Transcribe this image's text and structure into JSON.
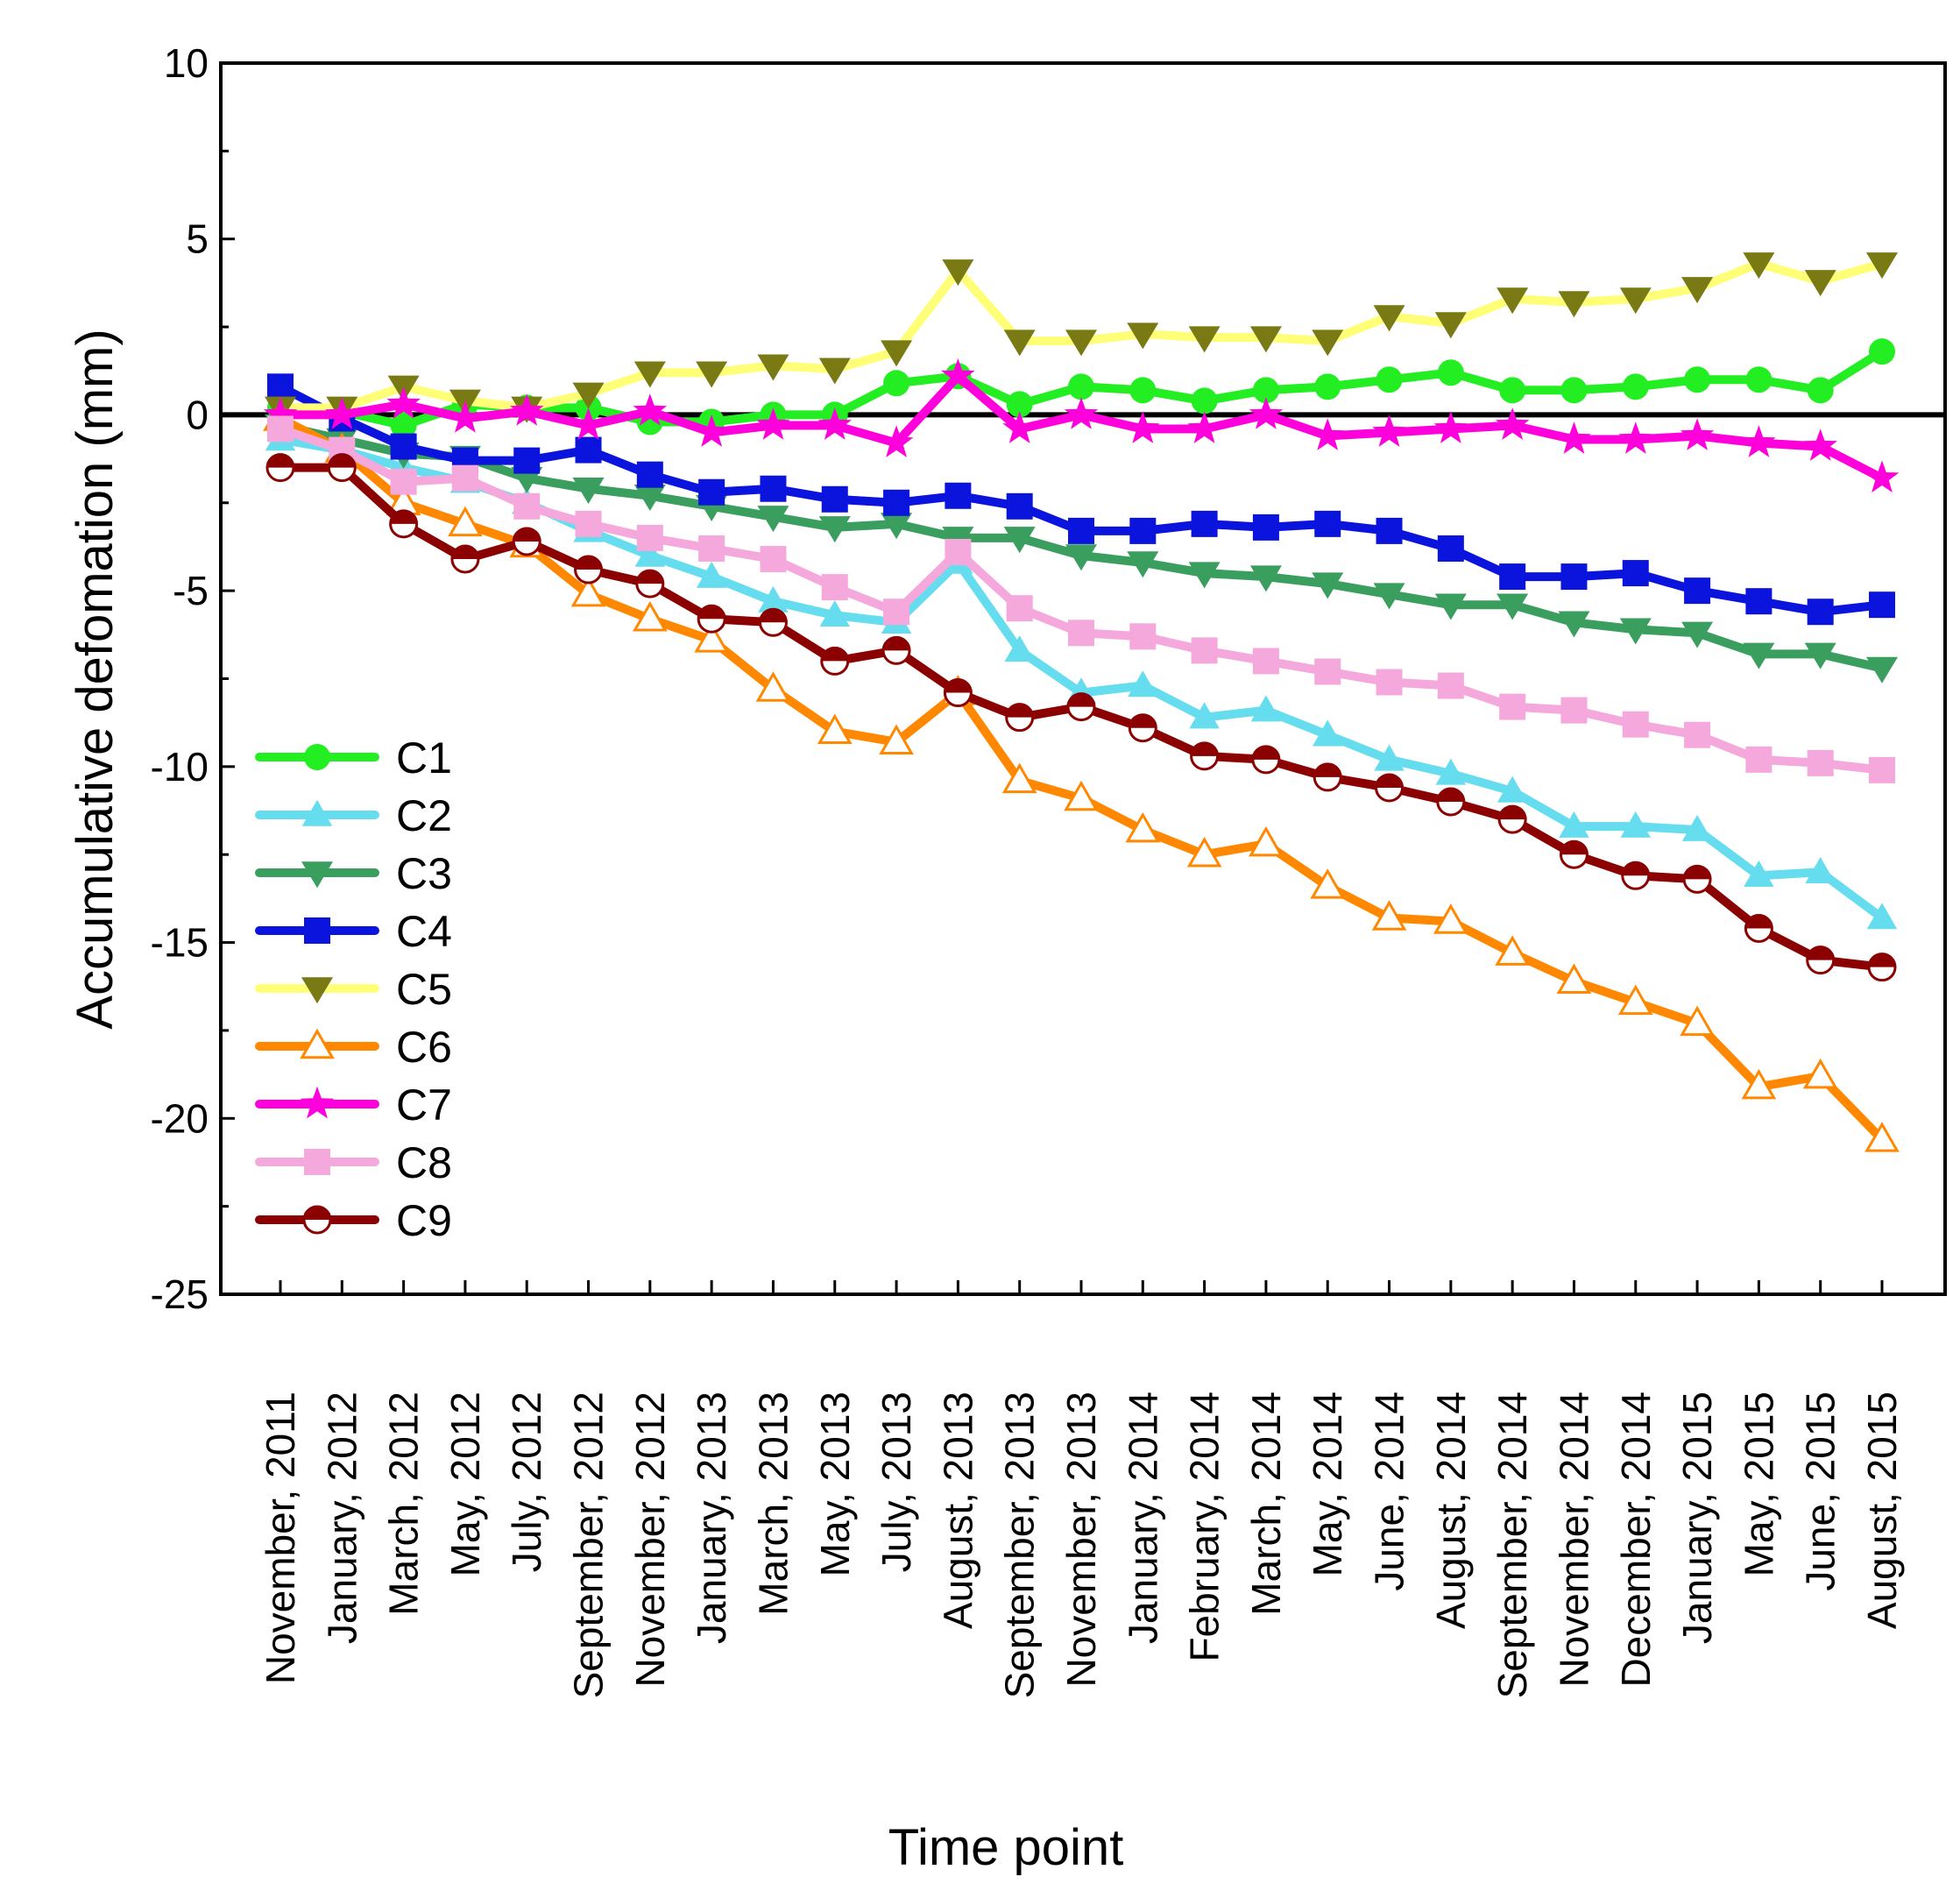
{
  "chart_data": {
    "type": "line",
    "title": "",
    "xlabel": "Time point",
    "ylabel": "Accumulative defomation (mm)",
    "ylim": [
      -25,
      10
    ],
    "yticks": [
      10,
      5,
      0,
      -5,
      -10,
      -15,
      -20,
      -25
    ],
    "grid": false,
    "legend_position": "lower-left",
    "categories": [
      "November, 2011",
      "January, 2012",
      "March, 2012",
      "May, 2012",
      "July, 2012",
      "September, 2012",
      "November, 2012",
      "January, 2013",
      "March, 2013",
      "May, 2013",
      "July, 2013",
      "August, 2013",
      "September, 2013",
      "November, 2013",
      "January, 2014",
      "February, 2014",
      "March, 2014",
      "May, 2014",
      "June, 2014",
      "August, 2014",
      "September, 2014",
      "November, 2014",
      "December, 2014",
      "January, 2015",
      "May, 2015",
      "June, 2015",
      "August, 2015"
    ],
    "series": [
      {
        "name": "C1",
        "color": "#22ee22",
        "marker": "circle",
        "values": [
          0.2,
          0.1,
          -0.3,
          0.3,
          0.2,
          0.2,
          -0.2,
          -0.2,
          0.0,
          0.0,
          0.9,
          1.1,
          0.3,
          0.8,
          0.7,
          0.4,
          0.7,
          0.8,
          1.0,
          1.2,
          0.7,
          0.7,
          0.8,
          1.0,
          1.0,
          0.7,
          1.8
        ]
      },
      {
        "name": "C2",
        "color": "#66ddee",
        "marker": "triangle-up",
        "values": [
          -0.7,
          -1.0,
          -1.5,
          -1.9,
          -2.5,
          -3.3,
          -4.0,
          -4.6,
          -5.3,
          -5.7,
          -5.9,
          -4.2,
          -6.7,
          -7.9,
          -7.7,
          -8.6,
          -8.4,
          -9.1,
          -9.8,
          -10.2,
          -10.7,
          -11.7,
          -11.7,
          -11.8,
          -13.1,
          -13.0,
          -14.3
        ]
      },
      {
        "name": "C3",
        "color": "#3a9e5e",
        "marker": "triangle-down",
        "values": [
          -0.3,
          -0.7,
          -1.1,
          -1.2,
          -1.8,
          -2.1,
          -2.3,
          -2.6,
          -2.9,
          -3.2,
          -3.1,
          -3.5,
          -3.5,
          -4.0,
          -4.2,
          -4.5,
          -4.6,
          -4.8,
          -5.1,
          -5.4,
          -5.4,
          -5.9,
          -6.1,
          -6.2,
          -6.8,
          -6.8,
          -7.2
        ]
      },
      {
        "name": "C4",
        "color": "#0a14dd",
        "marker": "square",
        "values": [
          0.8,
          -0.1,
          -0.9,
          -1.3,
          -1.3,
          -1.0,
          -1.7,
          -2.2,
          -2.1,
          -2.4,
          -2.5,
          -2.3,
          -2.6,
          -3.3,
          -3.3,
          -3.1,
          -3.2,
          -3.1,
          -3.3,
          -3.8,
          -4.6,
          -4.6,
          -4.5,
          -5.0,
          -5.3,
          -5.6,
          -5.4
        ]
      },
      {
        "name": "C5",
        "color": "#ffff77",
        "marker": "triangle-down",
        "markerColor": "#7a7a14",
        "values": [
          0.2,
          0.2,
          0.8,
          0.4,
          0.2,
          0.6,
          1.2,
          1.2,
          1.4,
          1.3,
          1.8,
          4.1,
          2.1,
          2.1,
          2.3,
          2.2,
          2.2,
          2.1,
          2.8,
          2.6,
          3.3,
          3.2,
          3.3,
          3.6,
          4.3,
          3.8,
          4.3
        ]
      },
      {
        "name": "C6",
        "color": "#ff8800",
        "marker": "triangle-up-open",
        "values": [
          -0.1,
          -1.0,
          -2.5,
          -3.1,
          -3.7,
          -5.1,
          -5.8,
          -6.4,
          -7.8,
          -9.0,
          -9.3,
          -7.9,
          -10.4,
          -10.9,
          -11.8,
          -12.5,
          -12.2,
          -13.4,
          -14.3,
          -14.4,
          -15.3,
          -16.1,
          -16.7,
          -17.3,
          -19.1,
          -18.8,
          -20.6
        ]
      },
      {
        "name": "C7",
        "color": "#ff00dd",
        "marker": "star",
        "values": [
          0.0,
          0.0,
          0.3,
          -0.1,
          0.1,
          -0.3,
          0.1,
          -0.5,
          -0.3,
          -0.3,
          -0.8,
          1.1,
          -0.4,
          0.0,
          -0.4,
          -0.4,
          0.0,
          -0.6,
          -0.5,
          -0.4,
          -0.3,
          -0.7,
          -0.7,
          -0.6,
          -0.8,
          -0.9,
          -1.8
        ]
      },
      {
        "name": "C8",
        "color": "#f5a8dc",
        "marker": "square",
        "values": [
          -0.4,
          -1.0,
          -1.9,
          -1.8,
          -2.6,
          -3.1,
          -3.5,
          -3.8,
          -4.1,
          -4.9,
          -5.6,
          -3.9,
          -5.5,
          -6.2,
          -6.3,
          -6.7,
          -7.0,
          -7.3,
          -7.6,
          -7.7,
          -8.3,
          -8.4,
          -8.8,
          -9.1,
          -9.8,
          -9.9,
          -10.1
        ]
      },
      {
        "name": "C9",
        "color": "#8b0000",
        "marker": "circle-open",
        "values": [
          -1.5,
          -1.5,
          -3.1,
          -4.1,
          -3.6,
          -4.4,
          -4.8,
          -5.8,
          -5.9,
          -7.0,
          -6.7,
          -7.9,
          -8.6,
          -8.3,
          -8.9,
          -9.7,
          -9.8,
          -10.3,
          -10.6,
          -11.0,
          -11.5,
          -12.5,
          -13.1,
          -13.2,
          -14.6,
          -15.5,
          -15.7
        ]
      }
    ]
  }
}
